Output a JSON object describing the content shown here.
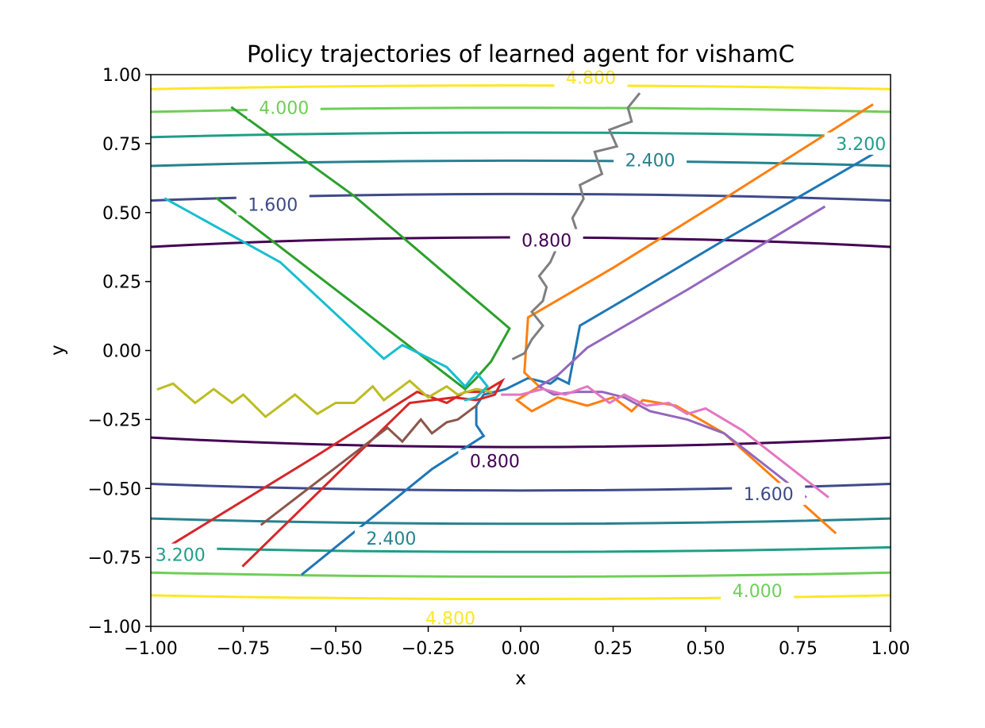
{
  "chart_data": {
    "type": "line",
    "title": "Policy trajectories of learned agent for vishamC",
    "xlabel": "x",
    "ylabel": "y",
    "xlim": [
      -1.0,
      1.0
    ],
    "ylim": [
      -1.0,
      1.0
    ],
    "grid": false,
    "legend": "none",
    "x_ticks": [
      "−1.00",
      "−0.75",
      "−0.50",
      "−0.25",
      "0.00",
      "0.25",
      "0.50",
      "0.75",
      "1.00"
    ],
    "y_ticks": [
      "−1.00",
      "−0.75",
      "−0.50",
      "−0.25",
      "0.00",
      "0.25",
      "0.50",
      "0.75",
      "1.00"
    ],
    "contours": {
      "center": [
        0.0,
        0.03
      ],
      "y_semi_axis_at_0_8": 0.38,
      "x_semi_axis_at_0_8": 2.4,
      "levels": [
        {
          "value": 0.8,
          "label": "0.800",
          "color": "#440154"
        },
        {
          "value": 1.6,
          "label": "1.600",
          "color": "#3e4a89"
        },
        {
          "value": 2.4,
          "label": "2.400",
          "color": "#26828e"
        },
        {
          "value": 3.2,
          "label": "3.200",
          "color": "#1f9e89"
        },
        {
          "value": 4.0,
          "label": "4.000",
          "color": "#6ece58"
        },
        {
          "value": 4.8,
          "label": "4.800",
          "color": "#fde725"
        }
      ],
      "label_positions": [
        {
          "text": "0.800",
          "x": 0.07,
          "y": 0.4,
          "color": "#440154"
        },
        {
          "text": "0.800",
          "x": -0.07,
          "y": -0.4,
          "color": "#440154"
        },
        {
          "text": "1.600",
          "x": -0.67,
          "y": 0.53,
          "color": "#3e4a89"
        },
        {
          "text": "1.600",
          "x": 0.67,
          "y": -0.52,
          "color": "#3e4a89"
        },
        {
          "text": "2.400",
          "x": 0.35,
          "y": 0.69,
          "color": "#26828e"
        },
        {
          "text": "2.400",
          "x": -0.35,
          "y": -0.68,
          "color": "#26828e"
        },
        {
          "text": "3.200",
          "x": 0.92,
          "y": 0.75,
          "color": "#1f9e89"
        },
        {
          "text": "3.200",
          "x": -0.92,
          "y": -0.74,
          "color": "#1f9e89"
        },
        {
          "text": "4.000",
          "x": -0.64,
          "y": 0.88,
          "color": "#6ece58"
        },
        {
          "text": "4.000",
          "x": 0.64,
          "y": -0.87,
          "color": "#6ece58"
        },
        {
          "text": "4.800",
          "x": 0.19,
          "y": 0.99,
          "color": "#fde725"
        },
        {
          "text": "4.800",
          "x": -0.19,
          "y": -0.97,
          "color": "#fde725"
        }
      ]
    },
    "series": [
      {
        "color": "#1f77b4",
        "points": [
          [
            0.95,
            0.71
          ],
          [
            0.55,
            0.4
          ],
          [
            0.3,
            0.2
          ],
          [
            0.16,
            0.09
          ],
          [
            0.13,
            -0.12
          ],
          [
            0.1,
            -0.1
          ],
          [
            0.08,
            -0.12
          ],
          [
            0.02,
            -0.1
          ],
          [
            -0.04,
            -0.14
          ],
          [
            -0.1,
            -0.16
          ],
          [
            -0.12,
            -0.2
          ],
          [
            -0.12,
            -0.27
          ],
          [
            -0.1,
            -0.31
          ],
          [
            -0.24,
            -0.43
          ],
          [
            -0.59,
            -0.81
          ]
        ]
      },
      {
        "color": "#ff7f0e",
        "points": [
          [
            0.95,
            0.89
          ],
          [
            0.55,
            0.55
          ],
          [
            0.25,
            0.3
          ],
          [
            0.02,
            0.12
          ],
          [
            0.01,
            -0.08
          ],
          [
            0.05,
            -0.13
          ],
          [
            -0.01,
            -0.18
          ],
          [
            0.03,
            -0.22
          ],
          [
            0.1,
            -0.17
          ],
          [
            0.18,
            -0.2
          ],
          [
            0.25,
            -0.17
          ],
          [
            0.3,
            -0.22
          ],
          [
            0.33,
            -0.18
          ],
          [
            0.42,
            -0.2
          ],
          [
            0.55,
            -0.3
          ],
          [
            0.85,
            -0.66
          ]
        ]
      },
      {
        "color": "#2ca02c",
        "points": [
          [
            -0.78,
            0.88
          ],
          [
            -0.45,
            0.56
          ],
          [
            -0.1,
            0.16
          ],
          [
            -0.03,
            0.08
          ],
          [
            -0.08,
            -0.04
          ],
          [
            -0.12,
            -0.1
          ],
          [
            -0.15,
            -0.14
          ],
          [
            -0.82,
            0.55
          ]
        ]
      },
      {
        "color": "#d62728",
        "points": [
          [
            -0.94,
            -0.7
          ],
          [
            -0.55,
            -0.38
          ],
          [
            -0.28,
            -0.15
          ],
          [
            -0.2,
            -0.19
          ],
          [
            -0.15,
            -0.15
          ],
          [
            -0.1,
            -0.15
          ],
          [
            -0.05,
            -0.11
          ],
          [
            -0.07,
            -0.16
          ],
          [
            -0.12,
            -0.18
          ],
          [
            -0.18,
            -0.17
          ],
          [
            -0.3,
            -0.19
          ],
          [
            -0.75,
            -0.78
          ]
        ]
      },
      {
        "color": "#9467bd",
        "points": [
          [
            0.82,
            0.52
          ],
          [
            0.45,
            0.22
          ],
          [
            0.18,
            0.01
          ],
          [
            0.1,
            -0.09
          ],
          [
            0.05,
            -0.13
          ],
          [
            0.09,
            -0.16
          ],
          [
            0.15,
            -0.15
          ],
          [
            0.22,
            -0.15
          ],
          [
            0.28,
            -0.17
          ],
          [
            0.35,
            -0.22
          ],
          [
            0.45,
            -0.25
          ],
          [
            0.55,
            -0.3
          ],
          [
            0.77,
            -0.53
          ]
        ]
      },
      {
        "color": "#8c564b",
        "points": [
          [
            -0.7,
            -0.63
          ],
          [
            -0.36,
            -0.28
          ],
          [
            -0.32,
            -0.33
          ],
          [
            -0.27,
            -0.25
          ],
          [
            -0.24,
            -0.3
          ],
          [
            -0.2,
            -0.26
          ],
          [
            -0.17,
            -0.25
          ],
          [
            -0.12,
            -0.2
          ]
        ]
      },
      {
        "color": "#e377c2",
        "points": [
          [
            0.83,
            -0.53
          ],
          [
            0.6,
            -0.29
          ],
          [
            0.5,
            -0.21
          ],
          [
            0.45,
            -0.23
          ],
          [
            0.4,
            -0.19
          ],
          [
            0.34,
            -0.2
          ],
          [
            0.28,
            -0.16
          ],
          [
            0.24,
            -0.19
          ],
          [
            0.18,
            -0.13
          ],
          [
            0.12,
            -0.16
          ],
          [
            0.06,
            -0.14
          ],
          [
            0.0,
            -0.16
          ],
          [
            -0.05,
            -0.16
          ]
        ]
      },
      {
        "color": "#7f7f7f",
        "points": [
          [
            0.32,
            0.93
          ],
          [
            0.29,
            0.88
          ],
          [
            0.3,
            0.83
          ],
          [
            0.24,
            0.8
          ],
          [
            0.26,
            0.74
          ],
          [
            0.2,
            0.72
          ],
          [
            0.22,
            0.64
          ],
          [
            0.16,
            0.6
          ],
          [
            0.17,
            0.55
          ],
          [
            0.14,
            0.48
          ],
          [
            0.15,
            0.44
          ],
          [
            0.1,
            0.38
          ],
          [
            0.08,
            0.32
          ],
          [
            0.05,
            0.27
          ],
          [
            0.07,
            0.23
          ],
          [
            0.06,
            0.18
          ],
          [
            0.03,
            0.14
          ],
          [
            0.06,
            0.09
          ],
          [
            0.03,
            0.04
          ],
          [
            0.01,
            -0.01
          ],
          [
            -0.02,
            -0.03
          ]
        ]
      },
      {
        "color": "#bcbd22",
        "points": [
          [
            -0.98,
            -0.14
          ],
          [
            -0.94,
            -0.12
          ],
          [
            -0.88,
            -0.19
          ],
          [
            -0.83,
            -0.14
          ],
          [
            -0.78,
            -0.19
          ],
          [
            -0.75,
            -0.16
          ],
          [
            -0.69,
            -0.24
          ],
          [
            -0.61,
            -0.16
          ],
          [
            -0.55,
            -0.23
          ],
          [
            -0.5,
            -0.19
          ],
          [
            -0.45,
            -0.19
          ],
          [
            -0.4,
            -0.13
          ],
          [
            -0.37,
            -0.18
          ],
          [
            -0.3,
            -0.11
          ],
          [
            -0.25,
            -0.17
          ],
          [
            -0.2,
            -0.13
          ],
          [
            -0.17,
            -0.16
          ],
          [
            -0.12,
            -0.14
          ],
          [
            -0.08,
            -0.15
          ]
        ]
      },
      {
        "color": "#17becf",
        "points": [
          [
            -0.96,
            0.55
          ],
          [
            -0.65,
            0.32
          ],
          [
            -0.37,
            -0.03
          ],
          [
            -0.32,
            0.02
          ],
          [
            -0.2,
            -0.06
          ],
          [
            -0.15,
            -0.13
          ],
          [
            -0.12,
            -0.08
          ],
          [
            -0.09,
            -0.13
          ],
          [
            -0.12,
            -0.17
          ],
          [
            -0.15,
            -0.18
          ]
        ]
      }
    ]
  }
}
